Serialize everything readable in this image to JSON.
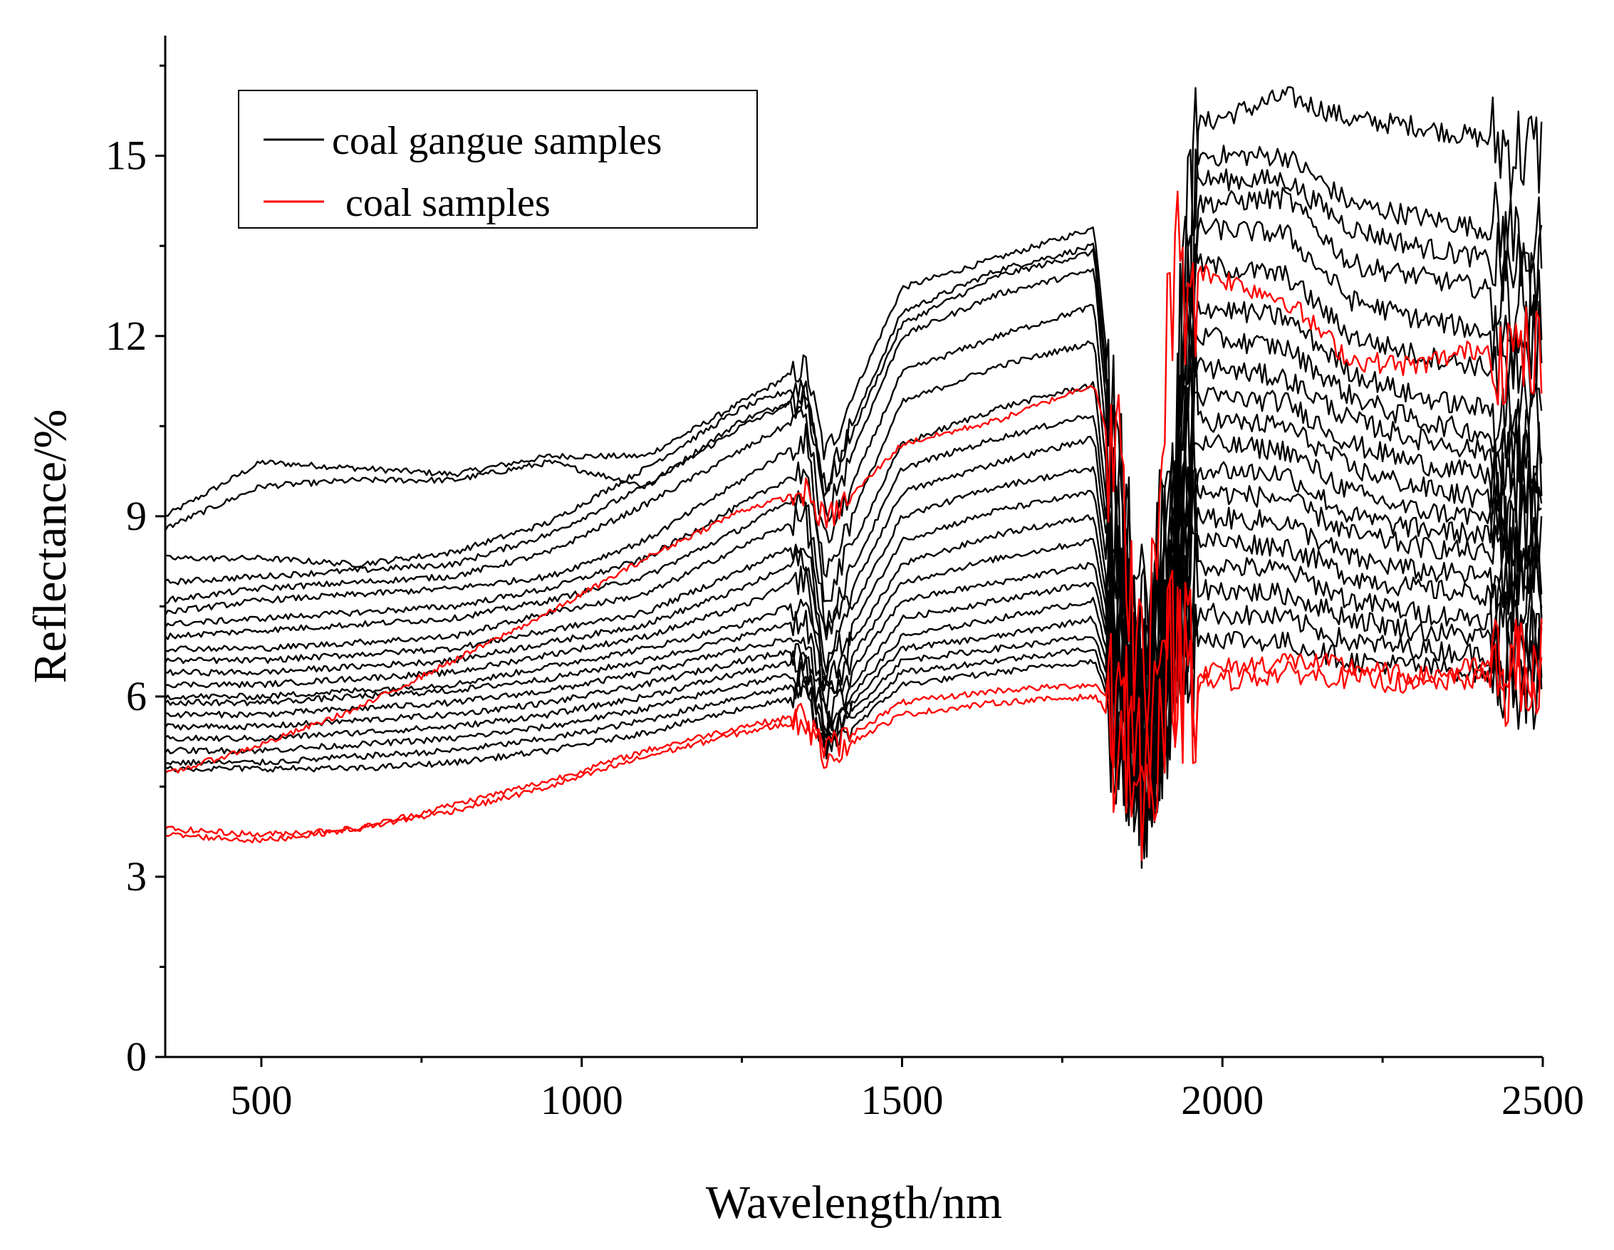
{
  "chart_data": {
    "type": "line",
    "title": "",
    "xlabel": "Wavelength/nm",
    "ylabel": "Reflectance/%",
    "xlim": [
      350,
      2500
    ],
    "ylim": [
      0,
      17
    ],
    "xticks": [
      500,
      1000,
      1500,
      2000,
      2500
    ],
    "xtick_labels": [
      "500",
      "1000",
      "1500",
      "2000",
      "2500"
    ],
    "yticks": [
      0,
      3,
      6,
      9,
      12,
      15
    ],
    "ytick_labels": [
      "0",
      "3",
      "6",
      "9",
      "12",
      "15"
    ],
    "grid": false,
    "legend_position": "top-left",
    "legend": [
      {
        "label": "coal gangue samples",
        "color": "#000000"
      },
      {
        "label": "coal samples",
        "color": "#ff0000"
      }
    ],
    "anchor_x": [
      350,
      500,
      650,
      800,
      950,
      1100,
      1250,
      1350,
      1380,
      1500,
      1650,
      1800,
      1840,
      1880,
      1920,
      1960,
      2100,
      2200,
      2300,
      2400,
      2500
    ],
    "series": [
      {
        "name": "coal gangue samples",
        "group": "gangue",
        "color": "#000000",
        "values": [
          9.0,
          9.9,
          9.8,
          9.7,
          10.0,
          10.0,
          10.9,
          11.5,
          10.0,
          12.8,
          13.3,
          13.8,
          9.5,
          7.0,
          10.0,
          15.5,
          16.0,
          15.6,
          15.5,
          15.3,
          15.0
        ]
      },
      {
        "name": "coal gangue samples",
        "group": "gangue",
        "color": "#000000",
        "values": [
          8.8,
          9.5,
          9.6,
          9.6,
          9.9,
          9.5,
          10.6,
          11.0,
          9.5,
          12.4,
          13.1,
          13.5,
          9.0,
          6.8,
          9.5,
          15.0,
          15.0,
          14.2,
          14.0,
          13.8,
          13.5
        ]
      },
      {
        "name": "coal gangue samples",
        "group": "gangue",
        "color": "#000000",
        "values": [
          8.3,
          8.3,
          8.2,
          8.4,
          8.9,
          9.8,
          10.8,
          11.2,
          9.4,
          12.2,
          13.0,
          13.4,
          8.6,
          6.5,
          9.2,
          14.6,
          14.6,
          13.8,
          13.5,
          13.3,
          13.0
        ]
      },
      {
        "name": "coal gangue samples",
        "group": "gangue",
        "color": "#000000",
        "values": [
          7.9,
          8.0,
          8.1,
          8.2,
          8.7,
          9.5,
          10.5,
          11.0,
          9.0,
          12.0,
          12.7,
          13.1,
          8.2,
          6.3,
          8.8,
          14.2,
          14.3,
          13.2,
          13.0,
          12.8,
          12.5
        ]
      },
      {
        "name": "coal gangue samples",
        "group": "gangue",
        "color": "#000000",
        "values": [
          7.6,
          7.8,
          7.9,
          8.0,
          8.4,
          9.2,
          10.1,
          10.7,
          8.5,
          11.4,
          12.0,
          12.5,
          7.8,
          6.1,
          8.5,
          13.8,
          13.7,
          12.6,
          12.3,
          12.1,
          11.8
        ]
      },
      {
        "name": "coal gangue samples",
        "group": "gangue",
        "color": "#000000",
        "values": [
          7.4,
          7.6,
          7.7,
          7.8,
          8.0,
          8.6,
          9.6,
          10.3,
          8.0,
          10.9,
          11.5,
          11.9,
          7.4,
          5.9,
          8.2,
          13.2,
          13.0,
          12.0,
          11.7,
          11.5,
          11.2
        ]
      },
      {
        "name": "coal gangue samples",
        "group": "gangue",
        "color": "#000000",
        "values": [
          7.2,
          7.3,
          7.4,
          7.5,
          7.8,
          8.3,
          9.2,
          9.8,
          7.6,
          10.2,
          10.8,
          11.2,
          7.1,
          5.7,
          7.9,
          12.5,
          12.3,
          11.4,
          11.0,
          10.8,
          10.6
        ]
      },
      {
        "name": "coal gangue samples",
        "group": "gangue",
        "color": "#000000",
        "values": [
          7.0,
          7.1,
          7.2,
          7.3,
          7.6,
          8.0,
          8.8,
          9.4,
          7.2,
          9.8,
          10.3,
          10.7,
          6.9,
          5.6,
          7.6,
          12.0,
          11.8,
          11.0,
          10.6,
          10.4,
          10.2
        ]
      },
      {
        "name": "coal gangue samples",
        "group": "gangue",
        "color": "#000000",
        "values": [
          6.8,
          6.8,
          6.9,
          7.0,
          7.4,
          7.7,
          8.5,
          9.0,
          6.9,
          9.4,
          9.9,
          10.3,
          6.7,
          5.4,
          7.4,
          11.5,
          11.3,
          10.6,
          10.3,
          10.1,
          9.9
        ]
      },
      {
        "name": "coal gangue samples",
        "group": "gangue",
        "color": "#000000",
        "values": [
          6.6,
          6.6,
          6.7,
          6.8,
          7.1,
          7.4,
          8.1,
          8.6,
          6.6,
          9.0,
          9.5,
          9.8,
          6.5,
          5.3,
          7.2,
          11.0,
          10.9,
          10.2,
          9.9,
          9.7,
          9.5
        ]
      },
      {
        "name": "coal gangue samples",
        "group": "gangue",
        "color": "#000000",
        "values": [
          6.4,
          6.4,
          6.5,
          6.6,
          6.9,
          7.2,
          7.8,
          8.3,
          6.4,
          8.6,
          9.1,
          9.4,
          6.3,
          5.2,
          7.0,
          10.6,
          10.5,
          9.8,
          9.5,
          9.3,
          9.1
        ]
      },
      {
        "name": "coal gangue samples",
        "group": "gangue",
        "color": "#000000",
        "values": [
          6.2,
          6.2,
          6.3,
          6.4,
          6.7,
          7.0,
          7.5,
          8.0,
          6.2,
          8.2,
          8.7,
          9.0,
          6.2,
          5.1,
          6.9,
          10.2,
          10.1,
          9.4,
          9.1,
          9.0,
          8.8
        ]
      },
      {
        "name": "coal gangue samples",
        "group": "gangue",
        "color": "#000000",
        "values": [
          6.0,
          6.0,
          6.1,
          6.2,
          6.5,
          6.8,
          7.2,
          7.6,
          6.0,
          7.9,
          8.3,
          8.6,
          6.1,
          5.0,
          6.8,
          9.8,
          9.7,
          9.0,
          8.8,
          8.7,
          8.5
        ]
      },
      {
        "name": "coal gangue samples",
        "group": "gangue",
        "color": "#000000",
        "values": [
          5.9,
          5.9,
          6.0,
          6.1,
          6.3,
          6.6,
          7.0,
          7.3,
          5.8,
          7.6,
          7.9,
          8.2,
          6.0,
          5.0,
          6.7,
          9.4,
          9.3,
          8.7,
          8.5,
          8.4,
          8.2
        ]
      },
      {
        "name": "coal gangue samples",
        "group": "gangue",
        "color": "#000000",
        "values": [
          5.7,
          5.7,
          5.8,
          5.9,
          6.1,
          6.4,
          6.8,
          7.0,
          5.6,
          7.3,
          7.6,
          7.9,
          5.9,
          4.9,
          6.6,
          9.0,
          8.9,
          8.3,
          8.1,
          8.0,
          7.9
        ]
      },
      {
        "name": "coal gangue samples",
        "group": "gangue",
        "color": "#000000",
        "values": [
          5.5,
          5.5,
          5.6,
          5.7,
          5.9,
          6.2,
          6.6,
          6.8,
          5.5,
          7.0,
          7.3,
          7.6,
          5.8,
          4.8,
          6.5,
          8.6,
          8.5,
          8.0,
          7.8,
          7.7,
          7.6
        ]
      },
      {
        "name": "coal gangue samples",
        "group": "gangue",
        "color": "#000000",
        "values": [
          5.3,
          5.3,
          5.4,
          5.5,
          5.7,
          6.0,
          6.4,
          6.6,
          5.4,
          6.8,
          7.0,
          7.3,
          5.7,
          4.8,
          6.4,
          8.2,
          8.1,
          7.6,
          7.4,
          7.3,
          7.2
        ]
      },
      {
        "name": "coal gangue samples",
        "group": "gangue",
        "color": "#000000",
        "values": [
          5.1,
          5.1,
          5.2,
          5.3,
          5.5,
          5.8,
          6.2,
          6.4,
          5.3,
          6.6,
          6.8,
          7.0,
          5.6,
          4.7,
          6.3,
          7.8,
          7.7,
          7.3,
          7.1,
          7.0,
          6.9
        ]
      },
      {
        "name": "coal gangue samples",
        "group": "gangue",
        "color": "#000000",
        "values": [
          4.9,
          4.9,
          5.0,
          5.1,
          5.3,
          5.6,
          6.0,
          6.2,
          5.2,
          6.4,
          6.6,
          6.8,
          5.5,
          4.6,
          6.2,
          7.4,
          7.3,
          6.9,
          6.8,
          6.7,
          6.6
        ]
      },
      {
        "name": "coal gangue samples",
        "group": "gangue",
        "color": "#000000",
        "values": [
          4.8,
          4.8,
          4.8,
          4.9,
          5.1,
          5.4,
          5.8,
          6.0,
          5.1,
          6.2,
          6.4,
          6.6,
          5.4,
          4.5,
          6.1,
          7.0,
          6.9,
          6.6,
          6.5,
          6.4,
          6.3
        ]
      },
      {
        "name": "coal samples",
        "group": "coal",
        "color": "#ff0000",
        "values": [
          4.7,
          5.2,
          5.8,
          6.6,
          7.4,
          8.3,
          9.1,
          9.4,
          8.9,
          10.2,
          10.6,
          11.2,
          9.5,
          5.5,
          13.0,
          13.1,
          12.6,
          11.6,
          11.5,
          11.8,
          11.6
        ]
      },
      {
        "name": "coal samples",
        "group": "coal",
        "color": "#ff0000",
        "values": [
          3.8,
          3.7,
          3.8,
          4.2,
          4.6,
          5.1,
          5.5,
          5.7,
          5.1,
          5.9,
          6.1,
          6.2,
          5.8,
          4.6,
          6.7,
          6.4,
          6.6,
          6.5,
          6.3,
          6.5,
          6.5
        ]
      },
      {
        "name": "coal samples",
        "group": "coal",
        "color": "#ff0000",
        "values": [
          3.7,
          3.6,
          3.8,
          4.1,
          4.5,
          5.0,
          5.4,
          5.6,
          5.0,
          5.7,
          5.9,
          6.0,
          5.5,
          4.5,
          6.5,
          6.2,
          6.4,
          6.3,
          6.2,
          6.3,
          6.3
        ]
      }
    ]
  }
}
